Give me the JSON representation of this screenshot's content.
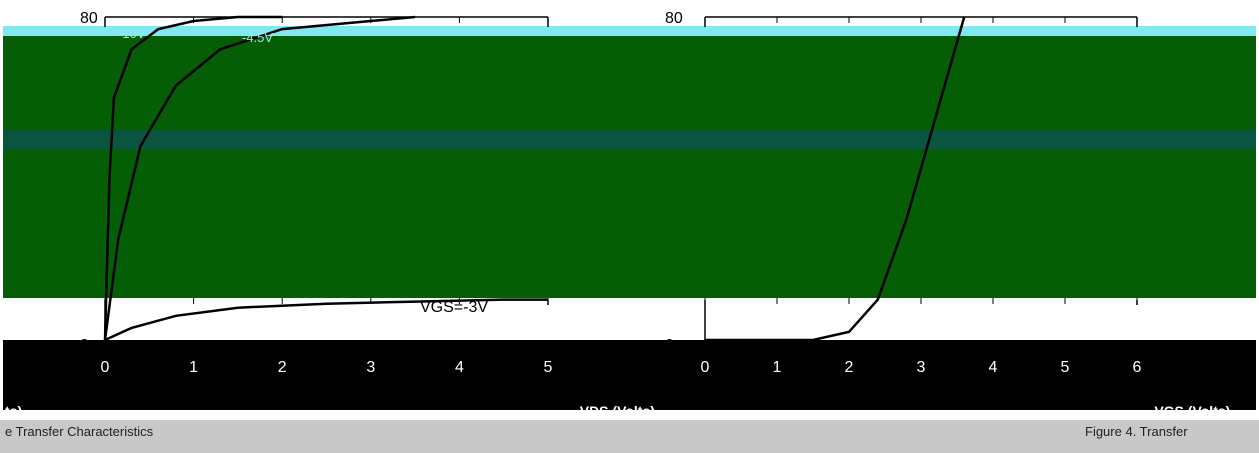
{
  "chart_data": [
    {
      "type": "line",
      "title": "",
      "xlabel": "-VDS (Volts)",
      "x_ticks": [
        "0",
        "1",
        "2",
        "3",
        "4",
        "5"
      ],
      "y_ticks": [
        "0",
        "80"
      ],
      "xlim": [
        0,
        5
      ],
      "ylim": [
        0,
        80
      ],
      "curve_labels": [
        "-10V",
        "-4.5V",
        "VGS=-3V"
      ],
      "series": [
        {
          "name": "-10V",
          "x": [
            0,
            0.05,
            0.1,
            0.3,
            0.6,
            1.0,
            1.5,
            2.0
          ],
          "y": [
            0,
            40,
            60,
            72,
            77,
            79,
            80,
            80
          ]
        },
        {
          "name": "-4.5V",
          "x": [
            0,
            0.15,
            0.4,
            0.8,
            1.3,
            2.0,
            3.0,
            3.5
          ],
          "y": [
            0,
            25,
            48,
            63,
            72,
            77,
            79,
            80
          ]
        },
        {
          "name": "VGS=-3V",
          "x": [
            0,
            0.3,
            0.8,
            1.5,
            2.5,
            3.5,
            4.5,
            5.0
          ],
          "y": [
            0,
            3,
            6,
            8,
            9,
            9.5,
            10,
            10
          ]
        }
      ]
    },
    {
      "type": "line",
      "title": "",
      "xlabel": "-VGS (Volts)",
      "x_ticks": [
        "0",
        "1",
        "2",
        "3",
        "4",
        "5",
        "6"
      ],
      "y_ticks": [
        "0",
        "80"
      ],
      "xlim": [
        0,
        6
      ],
      "ylim": [
        0,
        80
      ],
      "series": [
        {
          "name": "",
          "x": [
            0,
            1.5,
            2.0,
            2.4,
            2.8,
            3.2,
            3.6
          ],
          "y": [
            0,
            0,
            2,
            10,
            30,
            55,
            80
          ]
        }
      ]
    }
  ],
  "captions": {
    "left_axis_fragment": "ts)",
    "left_caption": "e Transfer Characteristics",
    "right_caption": "Figure 4. Transfer"
  }
}
